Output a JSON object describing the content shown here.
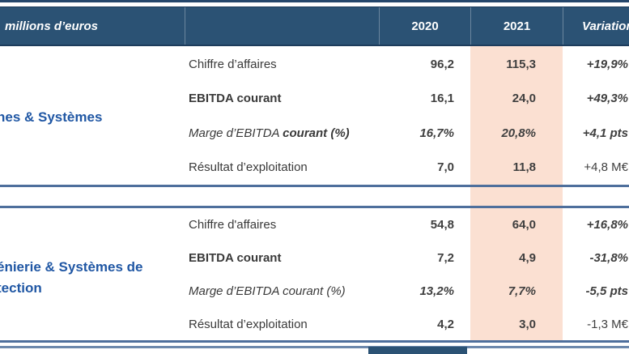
{
  "header": {
    "label": "millions d’euros",
    "col_2020": "2020",
    "col_2021": "2021",
    "col_variation": "Variation"
  },
  "colors": {
    "header_bg": "#2b5274",
    "header_border": "#1d3c5c",
    "highlight_2021": "#fbe0d2",
    "section_label_blue": "#2057a4",
    "separator_slate": "#4e6f9c",
    "body_text": "#3a3a3a"
  },
  "sections": [
    {
      "label": "nes & Systèmes",
      "rows": [
        {
          "label": "Chiffre d’affaires",
          "y2020": "96,2",
          "y2021": "115,3",
          "variation": "+19,9%"
        },
        {
          "label": "EBITDA courant",
          "y2020": "16,1",
          "y2021": "24,0",
          "variation": "+49,3%"
        },
        {
          "label_italic": "Marge d’EBITDA ",
          "label_bold_italic": "courant (%)",
          "y2020": "16,7%",
          "y2021": "20,8%",
          "variation": "+4,1 pts"
        },
        {
          "label": "Résultat d’exploitation",
          "y2020": "7,0",
          "y2021": "11,8",
          "variation": "+4,8 M€"
        }
      ]
    },
    {
      "label_line1": "énierie & Systèmes de",
      "label_line2": "tection",
      "rows": [
        {
          "label": "Chiffre d'affaires",
          "y2020": "54,8",
          "y2021": "64,0",
          "variation": "+16,8%"
        },
        {
          "label": "EBITDA courant",
          "y2020": "7,2",
          "y2021": "4,9",
          "variation": "-31,8%"
        },
        {
          "label": "Marge d’EBITDA courant (%)",
          "y2020": "13,2%",
          "y2021": "7,7%",
          "variation": "-5,5 pts"
        },
        {
          "label": "Résultat d’exploitation",
          "y2020": "4,2",
          "y2021": "3,0",
          "variation": "-1,3 M€"
        }
      ]
    }
  ]
}
